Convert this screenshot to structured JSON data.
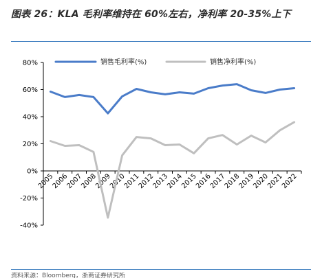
{
  "caption": "图表 26：KLA 毛利率维持在 60%左右，净利率 20-35%上下",
  "source": "资料来源：Bloomberg，浙商证券研究所",
  "colors": {
    "gross": "#4a7cc9",
    "net": "#bfbfbf",
    "rule": "#3f7fc0"
  },
  "chart_data": {
    "type": "line",
    "x": [
      "2005",
      "2006",
      "2007",
      "2008",
      "2009",
      "2010",
      "2011",
      "2012",
      "2013",
      "2014",
      "2015",
      "2016",
      "2017",
      "2018",
      "2019",
      "2020",
      "2021",
      "2022"
    ],
    "series": [
      {
        "name": "销售毛利率(%)",
        "color": "#4a7cc9",
        "values": [
          58.5,
          54.5,
          56.0,
          54.5,
          42.5,
          55.0,
          60.5,
          58.0,
          56.5,
          58.0,
          57.0,
          61.0,
          63.0,
          64.0,
          59.5,
          57.5,
          60.0,
          61.0
        ]
      },
      {
        "name": "销售净利率(%)",
        "color": "#bfbfbf",
        "values": [
          22.0,
          18.5,
          19.0,
          14.0,
          -34.5,
          11.5,
          25.0,
          24.0,
          19.0,
          19.5,
          13.0,
          24.0,
          26.5,
          19.5,
          26.0,
          21.0,
          30.0,
          36.0
        ]
      }
    ],
    "ylim": [
      -40,
      80
    ],
    "yticks": [
      -40,
      -20,
      0,
      20,
      40,
      60,
      80
    ],
    "ytick_labels": [
      "-40%",
      "-20%",
      "0%",
      "20%",
      "40%",
      "60%",
      "80%"
    ],
    "legend": "top",
    "grid": false
  }
}
